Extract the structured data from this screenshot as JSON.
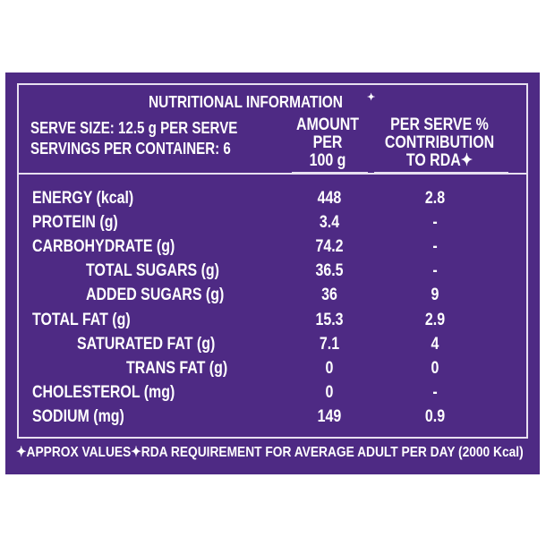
{
  "title": "NUTRITIONAL INFORMATION",
  "title_mark": "✦",
  "serve_size": "SERVE SIZE: 12.5 g PER SERVE",
  "servings": "SERVINGS PER CONTAINER: 6",
  "col_amount": [
    "AMOUNT",
    "PER",
    "100 g"
  ],
  "col_rda": [
    "PER SERVE %",
    "CONTRIBUTION",
    "TO RDA✦"
  ],
  "rows": [
    {
      "label": "ENERGY (kcal)",
      "amount": "448",
      "rda": "2.8"
    },
    {
      "label": "PROTEIN (g)",
      "amount": "3.4",
      "rda": "-"
    },
    {
      "label": "CARBOHYDRATE (g)",
      "amount": "74.2",
      "rda": "-"
    },
    {
      "label": "TOTAL SUGARS (g)",
      "amount": "36.5",
      "rda": "-"
    },
    {
      "label": "ADDED SUGARS (g)",
      "amount": "36",
      "rda": "9"
    },
    {
      "label": "TOTAL FAT (g)",
      "amount": "15.3",
      "rda": "2.9"
    },
    {
      "label": "SATURATED FAT (g)",
      "amount": "7.1",
      "rda": "4"
    },
    {
      "label": "TRANS FAT (g)",
      "amount": "0",
      "rda": "0"
    },
    {
      "label": "CHOLESTEROL (mg)",
      "amount": "0",
      "rda": "-"
    },
    {
      "label": "SODIUM  (mg)",
      "amount": "149",
      "rda": "0.9"
    }
  ],
  "footnote": "✦APPROX VALUES✦RDA REQUIREMENT FOR AVERAGE ADULT PER DAY (2000 Kcal)",
  "colors": {
    "panel": "#4e2a84",
    "text": "#ffffff",
    "rule": "#e7e0f0"
  }
}
